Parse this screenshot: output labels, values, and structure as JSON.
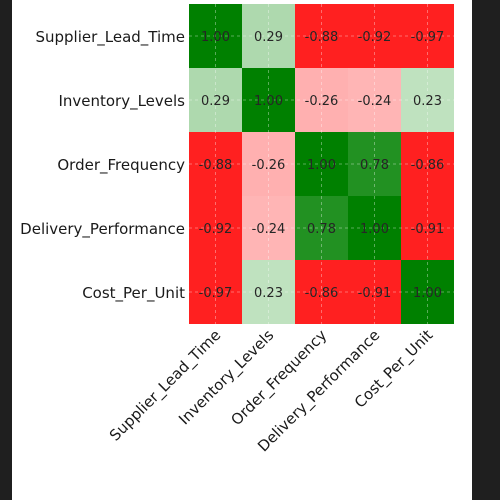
{
  "chart_data": {
    "type": "heatmap",
    "title": "",
    "xlabel": "",
    "ylabel": "",
    "rows": [
      "Supplier_Lead_Time",
      "Inventory_Levels",
      "Order_Frequency",
      "Delivery_Performance",
      "Cost_Per_Unit"
    ],
    "columns": [
      "Supplier_Lead_Time",
      "Inventory_Levels",
      "Order_Frequency",
      "Delivery_Performance",
      "Cost_Per_Unit"
    ],
    "values": [
      [
        1.0,
        0.29,
        -0.88,
        -0.92,
        -0.97
      ],
      [
        0.29,
        1.0,
        -0.26,
        -0.24,
        0.23
      ],
      [
        -0.88,
        -0.26,
        1.0,
        0.78,
        -0.86
      ],
      [
        -0.92,
        -0.24,
        0.78,
        1.0,
        -0.91
      ],
      [
        -0.97,
        0.23,
        -0.86,
        -0.91,
        1.0
      ]
    ],
    "value_format": "0.00",
    "colormap": {
      "negative_strong": "#ff2020",
      "negative_light": "#ffc0c0",
      "positive_light": "#c8e6c8",
      "positive_strong": "#008000"
    },
    "grid": true,
    "legend": "none"
  }
}
